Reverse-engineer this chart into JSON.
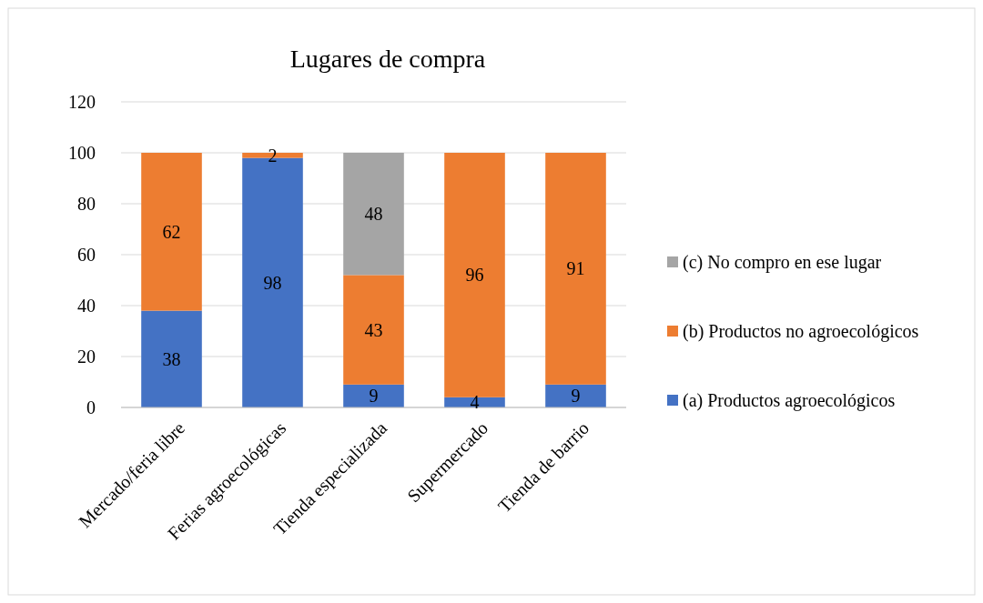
{
  "chart_data": {
    "type": "bar",
    "title": "Lugares de compra",
    "stacked": true,
    "categories": [
      "Mercado/feria libre",
      "Ferias agroecológicas",
      "Tienda especializada",
      "Supermercado",
      "Tienda de barrio"
    ],
    "series": [
      {
        "name": "(a) Productos agroecológicos",
        "color": "#4472c4",
        "values": [
          38,
          98,
          9,
          4,
          9
        ],
        "value_labels": [
          "38",
          "98",
          "9",
          "4",
          "9"
        ]
      },
      {
        "name": "(b) Productos no agroecológicos",
        "color": "#ed7d31",
        "values": [
          62,
          2,
          43,
          96,
          91
        ],
        "value_labels": [
          "62",
          "2",
          "43",
          "96",
          "91"
        ]
      },
      {
        "name": "(c) No compro en ese lugar",
        "color": "#a5a5a5",
        "values": [
          null,
          null,
          48,
          null,
          null
        ],
        "value_labels": [
          null,
          null,
          "48",
          null,
          null
        ]
      }
    ],
    "ylim": [
      0,
      120
    ],
    "yticks": [
      0,
      20,
      40,
      60,
      80,
      100,
      120
    ],
    "grid": "y",
    "legend": "right"
  }
}
